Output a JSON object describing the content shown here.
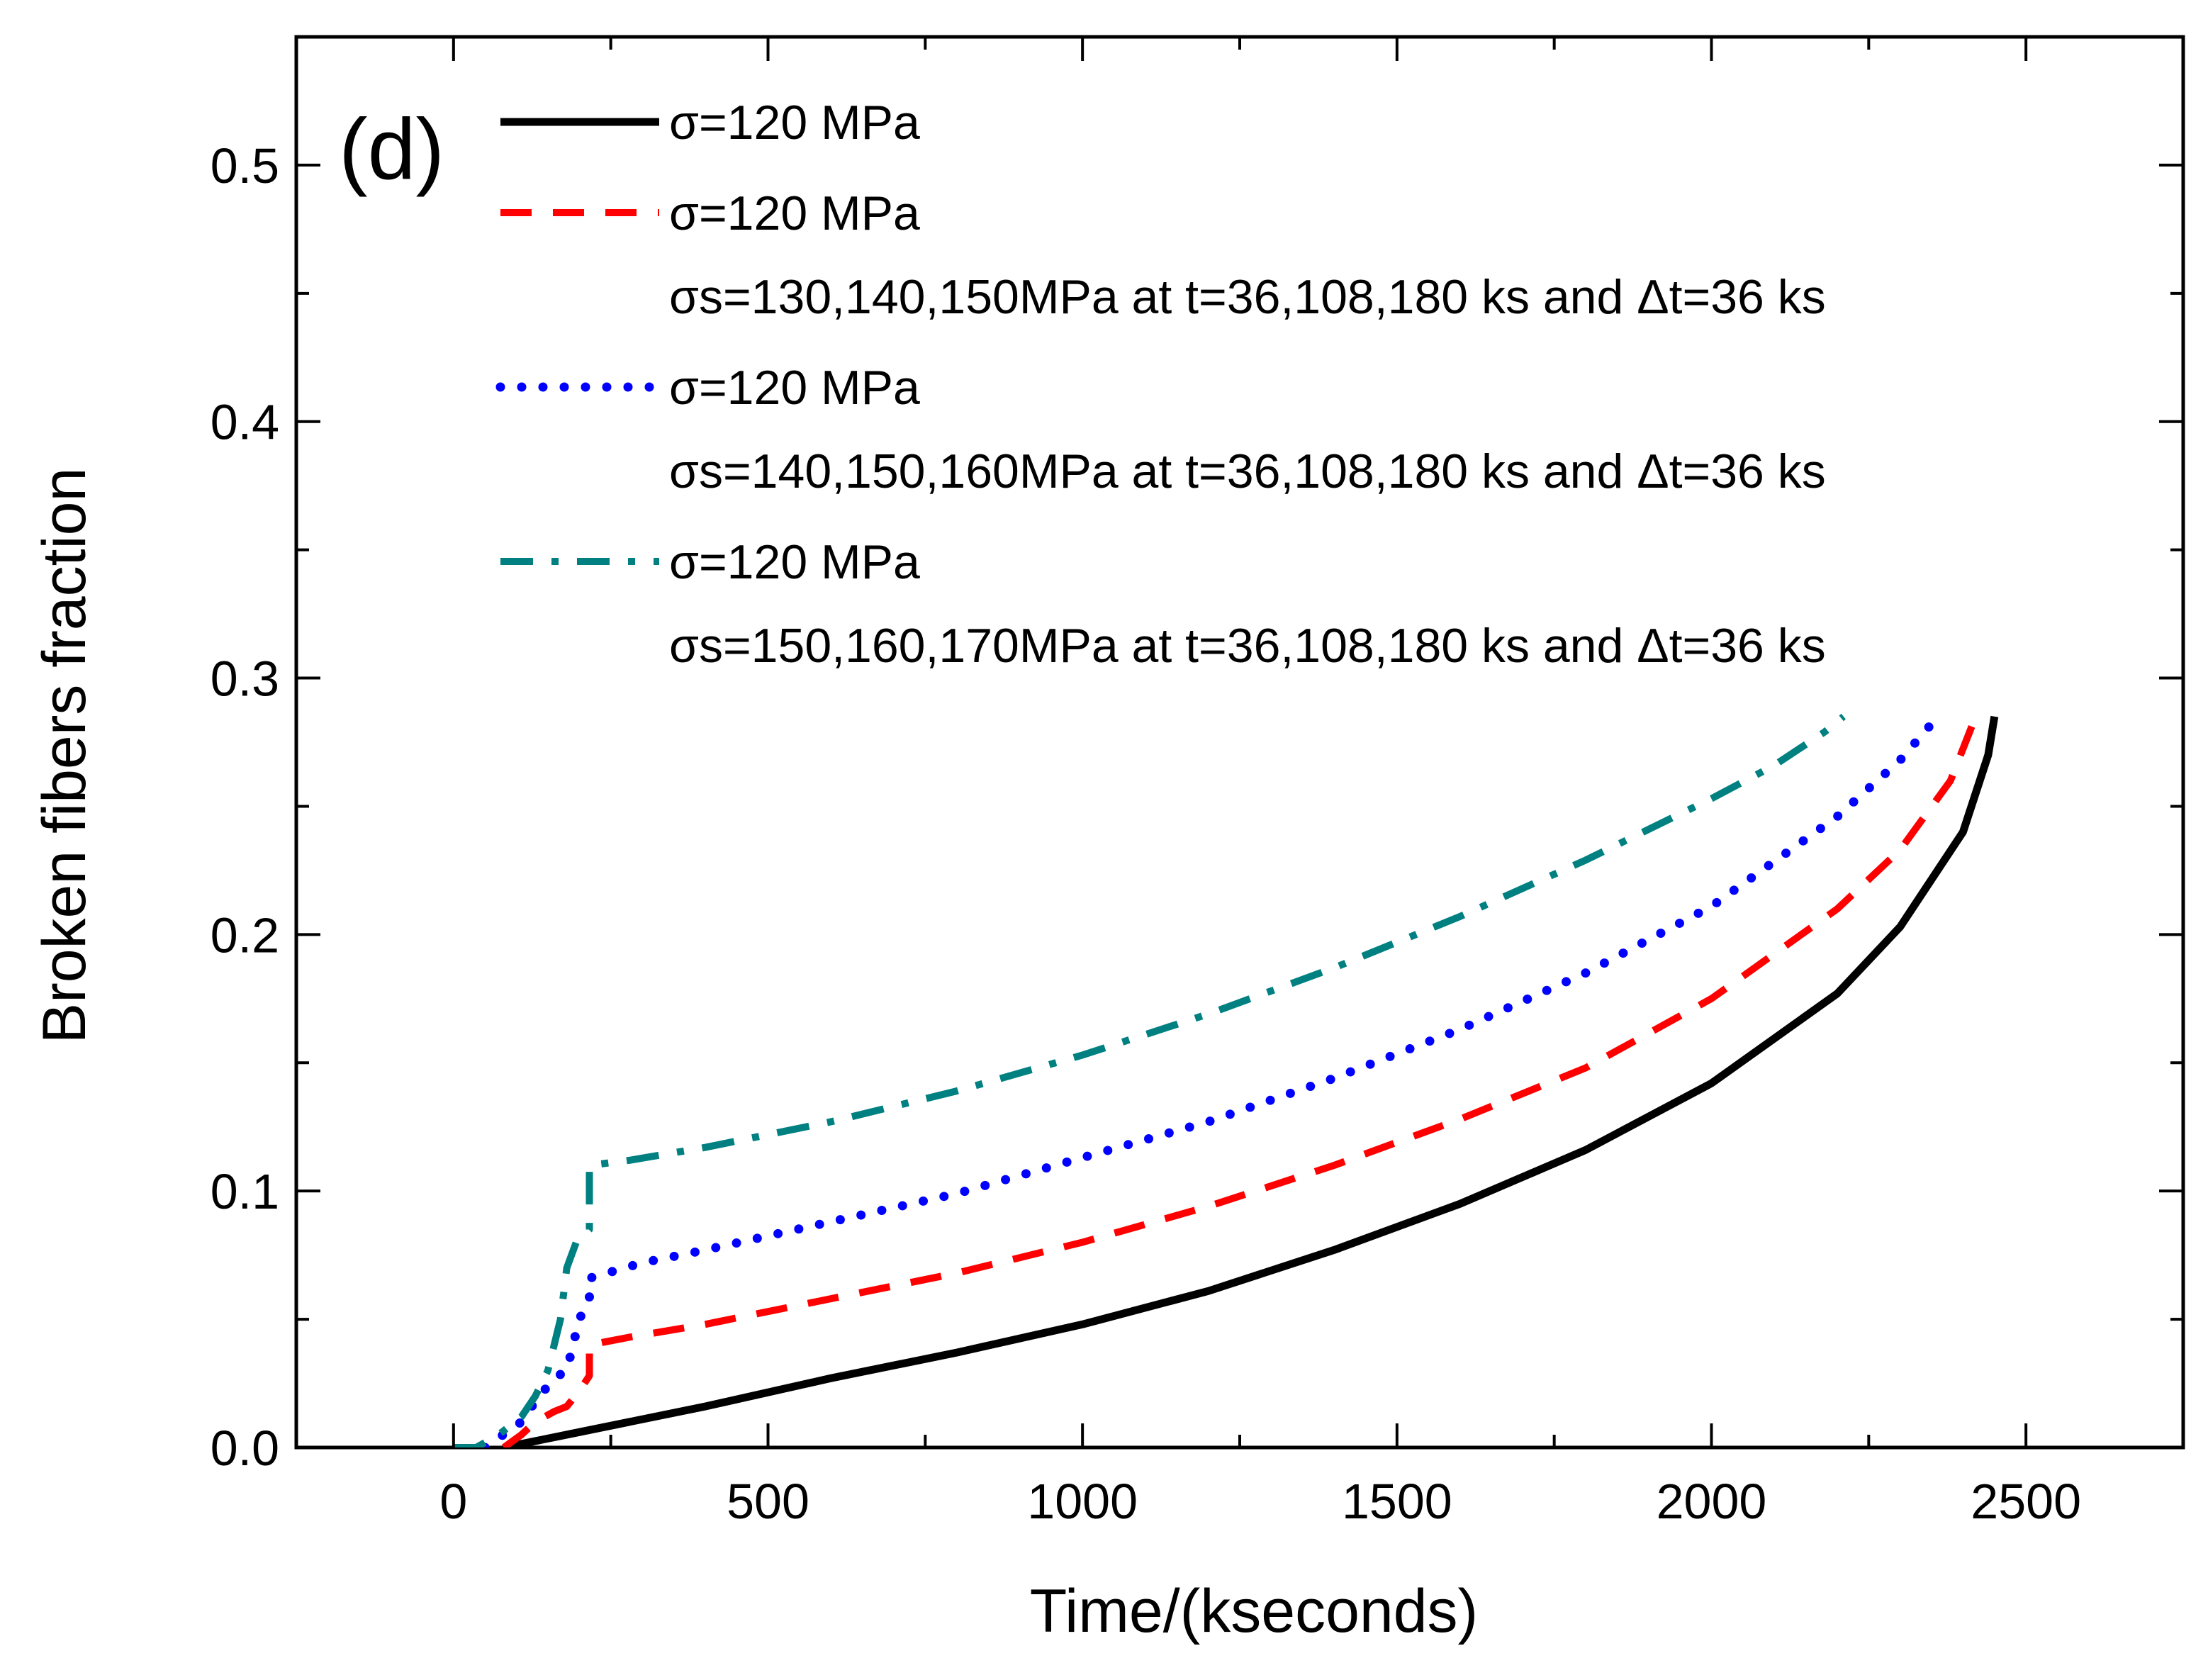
{
  "chart_data": {
    "type": "line",
    "panel_label": "(d)",
    "xlabel": "Time/(kseconds)",
    "ylabel": "Broken fibers fraction",
    "xlim": [
      -250,
      2750
    ],
    "ylim": [
      0,
      0.55
    ],
    "xticks": [
      0,
      500,
      1000,
      1500,
      2000,
      2500
    ],
    "yticks": [
      0.0,
      0.1,
      0.2,
      0.3,
      0.4,
      0.5
    ],
    "xtick_labels": [
      "0",
      "500",
      "1000",
      "1500",
      "2000",
      "2500"
    ],
    "ytick_labels": [
      "0.0",
      "0.1",
      "0.2",
      "0.3",
      "0.4",
      "0.5"
    ],
    "grid": false,
    "legend_position": "top-left",
    "series": [
      {
        "name": "σ=120 MPa",
        "sub_label": "",
        "color": "#000000",
        "dash": "solid",
        "x": [
          80,
          200,
          400,
          600,
          800,
          1000,
          1200,
          1400,
          1600,
          1800,
          2000,
          2200,
          2300,
          2400,
          2440,
          2450
        ],
        "y": [
          0.0,
          0.006,
          0.016,
          0.027,
          0.037,
          0.048,
          0.061,
          0.077,
          0.095,
          0.116,
          0.142,
          0.177,
          0.203,
          0.24,
          0.27,
          0.285
        ]
      },
      {
        "name": "σ=120 MPa",
        "sub_label": "σs=130,140,150MPa at t=36,108,180 ks and Δt=36 ks",
        "color": "#ff0000",
        "dash": "dashed",
        "x": [
          80,
          108,
          130,
          160,
          180,
          200,
          216,
          216,
          280,
          400,
          600,
          800,
          1000,
          1200,
          1400,
          1600,
          1800,
          2000,
          2200,
          2300,
          2380,
          2420
        ],
        "y": [
          0.0,
          0.005,
          0.01,
          0.014,
          0.016,
          0.022,
          0.028,
          0.04,
          0.043,
          0.048,
          0.058,
          0.068,
          0.08,
          0.094,
          0.11,
          0.128,
          0.148,
          0.175,
          0.21,
          0.233,
          0.26,
          0.285
        ]
      },
      {
        "name": "σ=120 MPa",
        "sub_label": "σs=140,150,160MPa at t=36,108,180 ks and Δt=36 ks",
        "color": "#0000ff",
        "dash": "dotted",
        "x": [
          50,
          108,
          130,
          160,
          180,
          200,
          216,
          216,
          300,
          400,
          600,
          800,
          1000,
          1200,
          1400,
          1600,
          1800,
          2000,
          2200,
          2300,
          2360
        ],
        "y": [
          0.0,
          0.01,
          0.018,
          0.027,
          0.03,
          0.05,
          0.058,
          0.066,
          0.072,
          0.077,
          0.088,
          0.099,
          0.113,
          0.127,
          0.144,
          0.163,
          0.185,
          0.211,
          0.246,
          0.268,
          0.285
        ]
      },
      {
        "name": "σ=120 MPa",
        "sub_label": "σs=150,160,170MPa at t=36,108,180 ks and Δt=36 ks",
        "color": "#008080",
        "dash": "dashdot",
        "x": [
          0,
          36,
          72,
          108,
          130,
          150,
          170,
          180,
          195,
          216,
          216,
          280,
          400,
          600,
          800,
          1000,
          1200,
          1400,
          1600,
          1800,
          2000,
          2100,
          2180,
          2210
        ],
        "y": [
          0.0,
          0.0,
          0.005,
          0.012,
          0.02,
          0.03,
          0.05,
          0.07,
          0.08,
          0.085,
          0.11,
          0.112,
          0.117,
          0.127,
          0.139,
          0.153,
          0.169,
          0.187,
          0.207,
          0.229,
          0.253,
          0.266,
          0.279,
          0.285
        ]
      }
    ]
  }
}
